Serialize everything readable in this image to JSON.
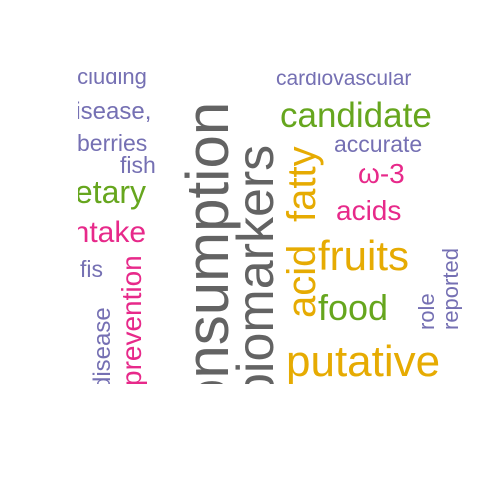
{
  "colors": {
    "gray": "#636363",
    "orange": "#e6ab02",
    "green": "#66a61e",
    "magenta": "#e7298a",
    "purple": "#7570b3"
  },
  "words": {
    "consumption": {
      "text": "consumption",
      "color": "#636363"
    },
    "biomarkers": {
      "text": "biomarkers",
      "color": "#636363"
    },
    "candidate": {
      "text": "candidate",
      "color": "#66a61e"
    },
    "putative": {
      "text": "putative",
      "color": "#e6ab02"
    },
    "fruits": {
      "text": "fruits",
      "color": "#e6ab02"
    },
    "fatty": {
      "text": "fatty",
      "color": "#e6ab02"
    },
    "acid": {
      "text": "acid",
      "color": "#e6ab02"
    },
    "food": {
      "text": "food",
      "color": "#66a61e"
    },
    "dietary": {
      "text": "dietary",
      "color": "#66a61e"
    },
    "intake": {
      "text": "intake",
      "color": "#e7298a"
    },
    "omega3": {
      "text": "ω-3",
      "color": "#e7298a"
    },
    "acids": {
      "text": "acids",
      "color": "#e7298a"
    },
    "prevention": {
      "text": "prevention",
      "color": "#e7298a"
    },
    "cardiovascular": {
      "text": "cardiovascular",
      "color": "#7570b3"
    },
    "including": {
      "text": "including",
      "color": "#7570b3"
    },
    "disease_comma": {
      "text": "disease,",
      "color": "#7570b3"
    },
    "berries": {
      "text": "berries",
      "color": "#7570b3"
    },
    "fish": {
      "text": "fish",
      "color": "#7570b3"
    },
    "accurate": {
      "text": "accurate",
      "color": "#7570b3"
    },
    "fis": {
      "text": "fis",
      "color": "#7570b3"
    },
    "disease": {
      "text": "disease",
      "color": "#7570b3"
    },
    "role": {
      "text": "role",
      "color": "#7570b3"
    },
    "reported": {
      "text": "reported",
      "color": "#7570b3"
    }
  }
}
